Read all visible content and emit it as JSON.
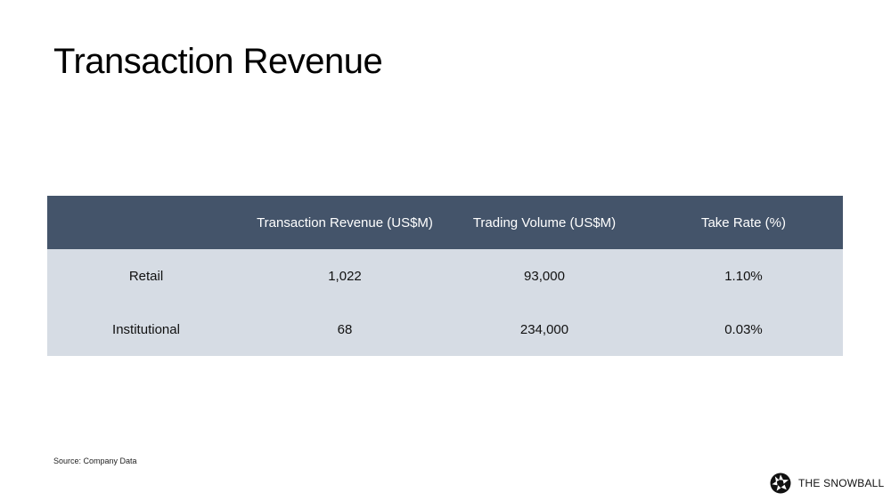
{
  "title": "Transaction Revenue",
  "table": {
    "headers": [
      "",
      "Transaction Revenue (US$M)",
      "Trading Volume (US$M)",
      "Take Rate (%)"
    ],
    "rows": [
      [
        "Retail",
        "1,022",
        "93,000",
        "1.10%"
      ],
      [
        "Institutional",
        "68",
        "234,000",
        "0.03%"
      ]
    ]
  },
  "source": "Source: Company Data",
  "brand": {
    "name": "THE SNOWBALL",
    "icon": "aperture-logo-icon"
  },
  "colors": {
    "header_bg": "#44546a",
    "row_bg": "#d6dce4"
  }
}
